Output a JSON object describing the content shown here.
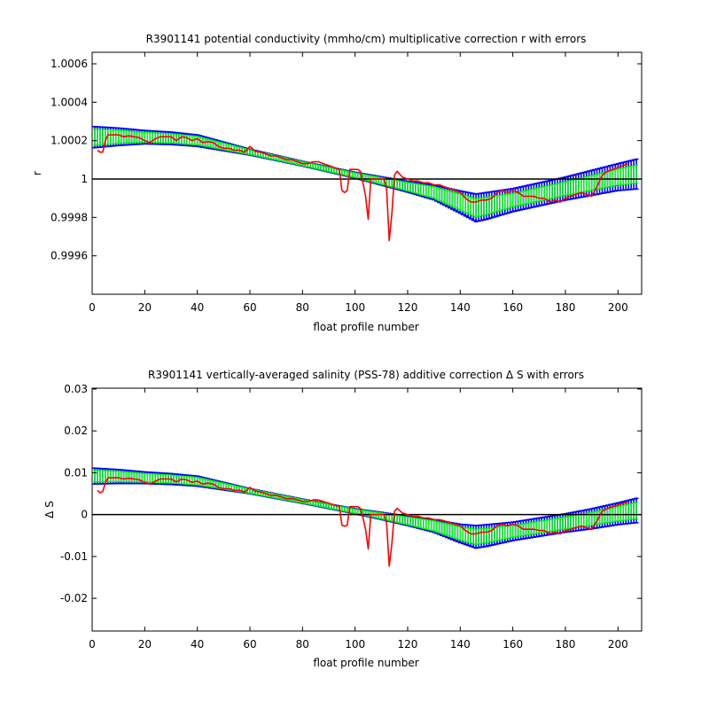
{
  "colors": {
    "background": "#ffffff",
    "axis": "#000000",
    "error_bar_outer": "#0000ff",
    "error_bar_inner": "#00ff00",
    "correction_line": "#ff0000",
    "reference_line": "#000000"
  },
  "chart_data": [
    {
      "type": "line",
      "title": "R3901141 potential conductivity (mmho/cm) multiplicative correction r with errors",
      "xlabel": "float profile number",
      "ylabel": "r",
      "xlim": [
        0,
        209
      ],
      "ylim": [
        0.9994,
        1.00066
      ],
      "x_ticks": [
        0,
        20,
        40,
        60,
        80,
        100,
        120,
        140,
        160,
        180,
        200
      ],
      "x_tick_labels": [
        "0",
        "20",
        "40",
        "60",
        "80",
        "100",
        "120",
        "140",
        "160",
        "180",
        "200"
      ],
      "y_ticks": [
        0.9996,
        0.9998,
        1.0,
        1.0002,
        1.0004,
        1.0006
      ],
      "y_tick_labels": [
        "0.9996",
        "0.9998",
        "1",
        "1.0002",
        "1.0004",
        "1.0006"
      ],
      "reference_line": 1.0,
      "grid": false,
      "fit_knots": {
        "x": [
          1,
          10,
          20,
          30,
          40,
          50,
          60,
          70,
          80,
          90,
          100,
          110,
          120,
          130,
          140,
          146,
          150,
          160,
          170,
          180,
          190,
          200,
          209
        ],
        "y": [
          1.000218,
          1.00022,
          1.000218,
          1.000212,
          1.0002,
          1.00017,
          1.00014,
          1.00011,
          1.00008,
          1.00005,
          1.00002,
          0.99999,
          0.99996,
          0.99993,
          0.99988,
          0.99985,
          0.99986,
          0.99989,
          0.99992,
          0.99995,
          0.99998,
          1.00001,
          1.00003
        ]
      },
      "error_knots": {
        "x": [
          1,
          20,
          40,
          60,
          80,
          100,
          120,
          130,
          140,
          146,
          150,
          160,
          180,
          200,
          209
        ],
        "inner": [
          4.2e-05,
          2.5e-05,
          2.2e-05,
          1.2e-05,
          1e-05,
          1.2e-05,
          2.2e-05,
          3e-05,
          4.2e-05,
          4.8e-05,
          4.5e-05,
          3.5e-05,
          3.5e-05,
          4.2e-05,
          4.8e-05
        ],
        "outer": [
          5.5e-05,
          3.5e-05,
          3e-05,
          1.5e-05,
          1.2e-05,
          1.5e-05,
          2.8e-05,
          3.8e-05,
          5.8e-05,
          7.2e-05,
          7e-05,
          6e-05,
          6e-05,
          7e-05,
          8e-05
        ]
      },
      "series": [
        {
          "x": [
            2,
            3,
            4,
            5,
            6,
            8,
            10,
            12,
            14,
            16,
            18,
            20,
            22,
            24,
            26,
            28,
            30,
            32,
            34,
            36,
            38,
            40,
            42,
            44,
            46,
            48,
            50,
            52,
            54,
            56,
            58,
            60,
            62,
            64,
            66,
            68,
            70,
            72,
            74,
            76,
            78,
            80,
            82,
            84,
            86,
            88,
            90,
            92,
            94,
            95,
            96,
            97,
            98,
            100,
            101,
            102,
            103,
            104,
            105,
            106,
            108,
            110,
            111,
            112,
            113,
            114,
            115,
            116,
            118,
            120,
            122,
            124,
            126,
            128,
            130,
            132,
            134,
            136,
            138,
            140,
            142,
            144,
            146,
            148,
            150,
            152,
            154,
            156,
            158,
            160,
            162,
            164,
            166,
            168,
            170,
            172,
            174,
            176,
            178,
            180,
            182,
            184,
            186,
            188,
            190,
            192,
            194,
            196,
            198,
            200,
            202,
            204
          ],
          "y": [
            1.00015,
            1.00014,
            1.00014,
            1.0002,
            1.00023,
            1.00023,
            1.00023,
            1.00022,
            1.000225,
            1.00022,
            1.000215,
            1.0002,
            1.00019,
            1.00021,
            1.00022,
            1.00022,
            1.00022,
            1.0002,
            1.00022,
            1.000215,
            1.0002,
            1.00021,
            1.00019,
            1.000195,
            1.00019,
            1.00017,
            1.00016,
            1.00016,
            1.00015,
            1.00015,
            1.00014,
            1.00017,
            1.000145,
            1.00014,
            1.00013,
            1.00012,
            1.00012,
            1.00011,
            1.0001,
            1.0001,
            1.00009,
            1.00008,
            1.00008,
            1.00009,
            1.00009,
            1.00008,
            1.00007,
            1.00006,
            1.00005,
            0.99994,
            0.99993,
            0.99994,
            1.00005,
            1.00005,
            1.00005,
            1.00004,
            0.99998,
            0.99991,
            0.99979,
            1.0,
            1.0,
            1.0,
            1.0,
            0.99995,
            0.99968,
            0.99982,
            1.00002,
            1.00004,
            1.00001,
            1.0,
            0.99999,
            0.99999,
            0.99998,
            0.99998,
            0.99997,
            0.99997,
            0.99996,
            0.99995,
            0.99994,
            0.99993,
            0.9999,
            0.99988,
            0.99988,
            0.99989,
            0.99989,
            0.9999,
            0.99993,
            0.99994,
            0.99993,
            0.99994,
            0.99993,
            0.99991,
            0.99991,
            0.99991,
            0.9999,
            0.9999,
            0.99988,
            0.99989,
            0.99988,
            0.9999,
            0.99991,
            0.99992,
            0.99993,
            0.99992,
            0.99991,
            0.99996,
            1.00002,
            1.00004,
            1.00005,
            1.00006,
            1.00007,
            1.00008
          ]
        }
      ]
    },
    {
      "type": "line",
      "title": "R3901141 vertically-averaged salinity (PSS-78) additive correction Δ S with errors",
      "xlabel": "float profile number",
      "ylabel": "Δ S",
      "xlim": [
        0,
        209
      ],
      "ylim": [
        -0.0278,
        0.0302
      ],
      "x_ticks": [
        0,
        20,
        40,
        60,
        80,
        100,
        120,
        140,
        160,
        180,
        200
      ],
      "x_tick_labels": [
        "0",
        "20",
        "40",
        "60",
        "80",
        "100",
        "120",
        "140",
        "160",
        "180",
        "200"
      ],
      "y_ticks": [
        -0.02,
        -0.01,
        0,
        0.01,
        0.02,
        0.03
      ],
      "y_tick_labels": [
        "-0.02",
        "-0.01",
        "0",
        "0.01",
        "0.02",
        "0.03"
      ],
      "reference_line": 0,
      "grid": false,
      "fit_knots": {
        "x": [
          1,
          10,
          20,
          30,
          40,
          50,
          60,
          70,
          80,
          90,
          100,
          110,
          120,
          130,
          140,
          146,
          150,
          160,
          170,
          180,
          190,
          200,
          209
        ],
        "y": [
          0.0092,
          0.0091,
          0.0088,
          0.0085,
          0.008,
          0.0068,
          0.0056,
          0.0044,
          0.0032,
          0.002,
          0.0008,
          -0.0003,
          -0.0015,
          -0.0027,
          -0.0045,
          -0.0053,
          -0.005,
          -0.004,
          -0.003,
          -0.002,
          -0.001,
          0.0002,
          0.0012
        ]
      },
      "error_knots": {
        "x": [
          1,
          20,
          40,
          60,
          80,
          100,
          120,
          130,
          140,
          146,
          150,
          160,
          180,
          200,
          209
        ],
        "inner": [
          0.0014,
          0.001,
          0.0009,
          0.0005,
          0.0004,
          0.0005,
          0.0009,
          0.0012,
          0.0016,
          0.0018,
          0.0017,
          0.0014,
          0.0014,
          0.0017,
          0.002
        ],
        "outer": [
          0.0019,
          0.0014,
          0.0012,
          0.0006,
          0.0005,
          0.0006,
          0.0011,
          0.0015,
          0.0022,
          0.0027,
          0.0026,
          0.0022,
          0.0022,
          0.0026,
          0.003
        ]
      },
      "series": [
        {
          "x": [
            2,
            3,
            4,
            5,
            6,
            8,
            10,
            12,
            14,
            16,
            18,
            20,
            22,
            24,
            26,
            28,
            30,
            32,
            34,
            36,
            38,
            40,
            42,
            44,
            46,
            48,
            50,
            52,
            54,
            56,
            58,
            60,
            62,
            64,
            66,
            68,
            70,
            72,
            74,
            76,
            78,
            80,
            82,
            84,
            86,
            88,
            90,
            92,
            94,
            95,
            96,
            97,
            98,
            100,
            101,
            102,
            103,
            104,
            105,
            106,
            108,
            110,
            111,
            112,
            113,
            114,
            115,
            116,
            118,
            120,
            122,
            124,
            126,
            128,
            130,
            132,
            134,
            136,
            138,
            140,
            142,
            144,
            146,
            148,
            150,
            152,
            154,
            156,
            158,
            160,
            162,
            164,
            166,
            168,
            170,
            172,
            174,
            176,
            178,
            180,
            182,
            184,
            186,
            188,
            190,
            192,
            194,
            196,
            198,
            200,
            202,
            204
          ],
          "y": [
            0.0058,
            0.0052,
            0.0055,
            0.0075,
            0.0088,
            0.0088,
            0.0088,
            0.0085,
            0.0087,
            0.0085,
            0.0083,
            0.0077,
            0.0073,
            0.008,
            0.0085,
            0.0085,
            0.0085,
            0.0078,
            0.0085,
            0.0083,
            0.0077,
            0.008,
            0.0073,
            0.0075,
            0.0073,
            0.0065,
            0.0062,
            0.0062,
            0.0058,
            0.0058,
            0.0054,
            0.0065,
            0.0056,
            0.0054,
            0.005,
            0.0046,
            0.0046,
            0.0042,
            0.0038,
            0.0038,
            0.0035,
            0.0031,
            0.0031,
            0.0035,
            0.0035,
            0.0031,
            0.0027,
            0.0023,
            0.0019,
            -0.0025,
            -0.0028,
            -0.0025,
            0.0019,
            0.0019,
            0.0019,
            0.0015,
            -0.0008,
            -0.0035,
            -0.0082,
            0.0,
            0.0,
            0.0,
            0.0,
            -0.002,
            -0.0123,
            -0.0069,
            0.0008,
            0.0015,
            0.0004,
            0.0,
            -0.0004,
            -0.0004,
            -0.0008,
            -0.0008,
            -0.0012,
            -0.0012,
            -0.0015,
            -0.0019,
            -0.0023,
            -0.0027,
            -0.0038,
            -0.0046,
            -0.0046,
            -0.0042,
            -0.0042,
            -0.0038,
            -0.0027,
            -0.0023,
            -0.0027,
            -0.0023,
            -0.0027,
            -0.0035,
            -0.0035,
            -0.0035,
            -0.0038,
            -0.0038,
            -0.0046,
            -0.0042,
            -0.0046,
            -0.0038,
            -0.0035,
            -0.0031,
            -0.0027,
            -0.0031,
            -0.0035,
            -0.0015,
            0.0008,
            0.0015,
            0.0019,
            0.0023,
            0.0027,
            0.0031
          ]
        }
      ]
    }
  ]
}
